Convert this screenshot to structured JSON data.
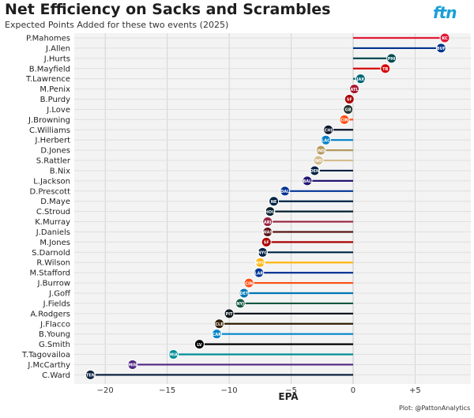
{
  "brand": {
    "logo_text": "ftn",
    "logo_color": "#1a9fd6"
  },
  "credit": "Plot: @PattonAnalytics",
  "chart_data": {
    "type": "bar",
    "orientation": "horizontal",
    "title": "Net Efficiency on Sacks and Scrambles",
    "subtitle": "Expected Points Added for these two events (2025)",
    "xlabel": "EPA",
    "ylabel": "",
    "xlim": [
      -22.5,
      9.5
    ],
    "xticks": [
      -20,
      -15,
      -10,
      -5,
      0,
      5
    ],
    "xtick_labels": [
      "−20",
      "−15",
      "−10",
      "−5",
      "0",
      "+5"
    ],
    "grid": true,
    "categories": [
      "P.Mahomes",
      "J.Allen",
      "J.Hurts",
      "B.Mayfield",
      "T.Lawrence",
      "M.Penix",
      "B.Purdy",
      "J.Love",
      "J.Browning",
      "C.Williams",
      "J.Herbert",
      "D.Jones",
      "S.Rattler",
      "B.Nix",
      "L.Jackson",
      "D.Prescott",
      "D.Maye",
      "C.Stroud",
      "K.Murray",
      "J.Daniels",
      "M.Jones",
      "S.Darnold",
      "R.Wilson",
      "M.Stafford",
      "J.Burrow",
      "J.Goff",
      "J.Fields",
      "A.Rodgers",
      "J.Flacco",
      "B.Young",
      "G.Smith",
      "T.Tagovailoa",
      "J.McCarthy",
      "C.Ward"
    ],
    "values": [
      7.4,
      7.1,
      3.1,
      2.6,
      0.6,
      0.1,
      -0.3,
      -0.4,
      -0.7,
      -2.0,
      -2.2,
      -2.6,
      -2.8,
      -3.1,
      -3.7,
      -5.5,
      -6.4,
      -6.7,
      -6.9,
      -6.9,
      -7.0,
      -7.3,
      -7.5,
      -7.6,
      -8.4,
      -8.8,
      -9.1,
      -10.0,
      -10.8,
      -11.0,
      -12.4,
      -14.5,
      -17.8,
      -21.2
    ],
    "colors": [
      "#e31837",
      "#00338d",
      "#004c54",
      "#d50a0a",
      "#006778",
      "#a71930",
      "#aa0000",
      "#203731",
      "#fb4f14",
      "#0b162a",
      "#0080c6",
      "#b3995d",
      "#d3bc8d",
      "#002244",
      "#241773",
      "#003594",
      "#002244",
      "#03202f",
      "#97233f",
      "#5a1414",
      "#aa0000",
      "#002244",
      "#ffb612",
      "#003594",
      "#fb4f14",
      "#0076b6",
      "#125740",
      "#101820",
      "#311d00",
      "#0085ca",
      "#000000",
      "#008e97",
      "#4f2683",
      "#0c2340"
    ],
    "team_marks": [
      "KC",
      "BUF",
      "PHI",
      "TB",
      "JAX",
      "ATL",
      "SF",
      "GB",
      "CIN",
      "CHI",
      "LAC",
      "IND",
      "NO",
      "DEN",
      "BAL",
      "DAL",
      "NE",
      "HOU",
      "ARI",
      "WAS",
      "SF",
      "NYG",
      "NYG",
      "LAR",
      "CIN",
      "DET",
      "NYJ",
      "PIT",
      "CLE",
      "CAR",
      "LV",
      "MIA",
      "MIN",
      "TEN"
    ]
  }
}
